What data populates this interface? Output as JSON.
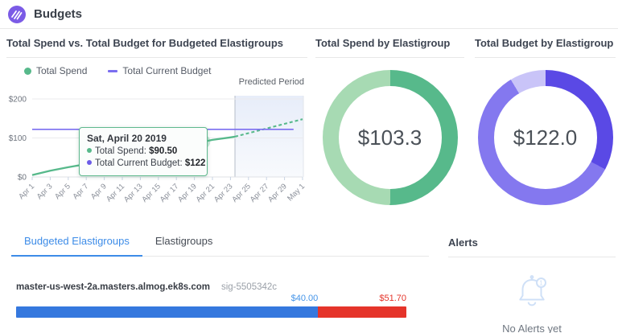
{
  "header": {
    "title": "Budgets"
  },
  "theme": {
    "accent_blue": "#3d8ce8",
    "green": "#57b98b",
    "purple_line": "#7b6ef0",
    "bar_blue": "#3578de",
    "bar_red": "#e5342a"
  },
  "panels": {
    "spend_vs_budget": {
      "title": "Total Spend vs. Total Budget for Budgeted Elastigroups",
      "predicted_label": "Predicted Period",
      "legend": [
        {
          "label": "Total Spend",
          "color": "#57b98b",
          "marker": "dot"
        },
        {
          "label": "Total Current Budget",
          "color": "#7b6ef0",
          "marker": "dash"
        }
      ],
      "tooltip": {
        "title": "Sat, April 20 2019",
        "rows": [
          {
            "label": "Total Spend:",
            "value": "$90.50",
            "color": "#57b98b"
          },
          {
            "label": "Total Current Budget:",
            "value": "$122",
            "color": "#6c5ce7"
          }
        ]
      }
    },
    "spend_donut": {
      "title": "Total Spend by Elastigroup",
      "center_value": "$103.3"
    },
    "budget_donut": {
      "title": "Total Budget by Elastigroup",
      "center_value": "$122.0"
    }
  },
  "tabs": [
    {
      "label": "Budgeted Elastigroups",
      "active": true
    },
    {
      "label": "Elastigroups",
      "active": false
    }
  ],
  "elastigroup_row": {
    "name": "master-us-west-2a.masters.almog.ek8s.com",
    "sig": "sig-5505342c",
    "budget_label": "$40.00",
    "spend_label": "$51.70"
  },
  "alerts": {
    "title": "Alerts",
    "empty_text": "No Alerts yet"
  },
  "chart_data": [
    {
      "type": "line",
      "title": "Total Spend vs. Total Budget for Budgeted Elastigroups",
      "x_tick_labels": [
        "Apr 1",
        "Apr 3",
        "Apr 5",
        "Apr 7",
        "Apr 9",
        "Apr 11",
        "Apr 13",
        "Apr 15",
        "Apr 17",
        "Apr 19",
        "Apr 21",
        "Apr 23",
        "Apr 25",
        "Apr 27",
        "Apr 29",
        "May 1"
      ],
      "x_range_days": [
        0,
        30
      ],
      "ylim": [
        0,
        200
      ],
      "y_ticks": [
        {
          "label": "$0",
          "value": 0
        },
        {
          "label": "$100",
          "value": 100
        },
        {
          "label": "$200",
          "value": 200
        }
      ],
      "grid": true,
      "predicted_start_day": 22.5,
      "predicted_label": "Predicted Period",
      "series": [
        {
          "name": "Total Spend",
          "style": "solid",
          "color": "#57b98b",
          "width": 2.3,
          "x": [
            0,
            2,
            4,
            6,
            8,
            10,
            12,
            14,
            16,
            18,
            19,
            20,
            22,
            22.5
          ],
          "values": [
            5,
            16,
            25,
            33,
            42,
            51,
            60,
            69,
            78,
            86,
            90.5,
            95,
            101.5,
            103.3
          ]
        },
        {
          "name": "Total Spend (predicted)",
          "style": "dashed",
          "color": "#57b98b",
          "width": 2.1,
          "x": [
            22.5,
            30
          ],
          "values": [
            103.3,
            148
          ]
        },
        {
          "name": "Total Current Budget",
          "style": "solid",
          "color": "#7b6ef0",
          "width": 1.6,
          "x": [
            0,
            29
          ],
          "values": [
            122,
            122
          ]
        }
      ],
      "highlight_point": {
        "x_day": 19,
        "date": "Sat, April 20 2019",
        "value": 90.5
      }
    },
    {
      "type": "pie",
      "donut": true,
      "title": "Total Spend by Elastigroup",
      "center_label": "$103.3",
      "total": 103.3,
      "segments": [
        {
          "name": "master-us-west-2a.masters.almog.ek8s.com",
          "value": 51.7,
          "color": "#57b98b"
        },
        {
          "value": 51.6,
          "color": "#a7dab3"
        }
      ]
    },
    {
      "type": "pie",
      "donut": true,
      "title": "Total Budget by Elastigroup",
      "center_label": "$122.0",
      "total": 122.0,
      "segments": [
        {
          "name": "master-us-west-2a.masters.almog.ek8s.com",
          "value": 40,
          "color": "#5a49e5"
        },
        {
          "value": 71.5,
          "color": "#8478ef"
        },
        {
          "value": 10.5,
          "color": "#c9c4f8"
        }
      ]
    },
    {
      "type": "bar",
      "orientation": "horizontal",
      "stacked": true,
      "group": "master-us-west-2a.masters.almog.ek8s.com",
      "segments": [
        {
          "value": 40,
          "color": "#3578de",
          "end_label": "$40.00"
        },
        {
          "value": 11.7,
          "color": "#e5342a",
          "end_label": "$51.70"
        }
      ]
    }
  ]
}
